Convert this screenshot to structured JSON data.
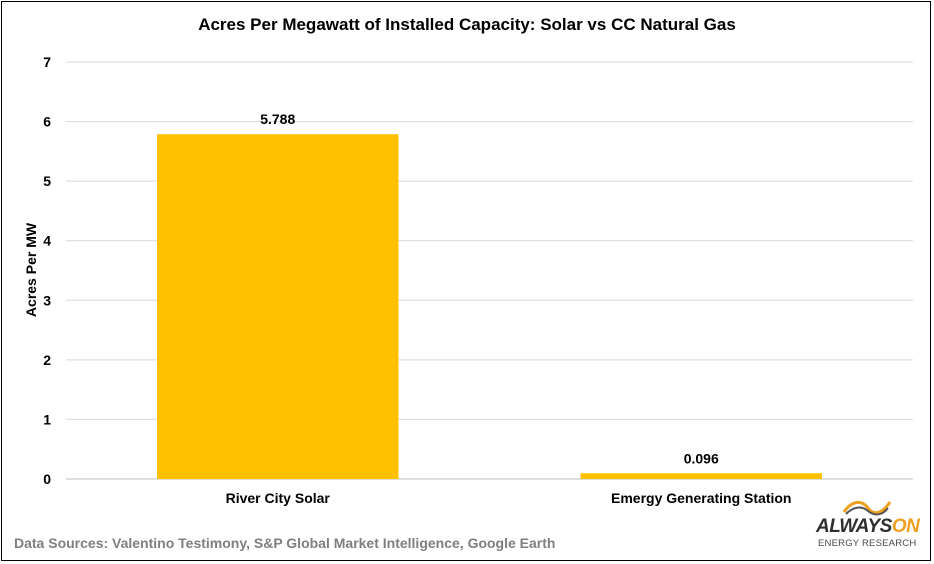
{
  "chart_data": {
    "type": "bar",
    "title": "Acres Per Megawatt of Installed Capacity: Solar vs CC Natural Gas",
    "categories": [
      "River City Solar",
      "Emergy Generating Station"
    ],
    "values": [
      5.788,
      0.096
    ],
    "data_labels": [
      "5.788",
      "0.096"
    ],
    "xlabel": "",
    "ylabel": "Acres Per MW",
    "ylim": [
      0,
      7
    ],
    "yticks": [
      0,
      1,
      2,
      3,
      4,
      5,
      6,
      7
    ],
    "grid": true,
    "bar_color": "#FFC000"
  },
  "footer": {
    "source": "Data Sources: Valentino Testimony, S&P Global Market Intelligence, Google Earth"
  },
  "logo": {
    "brand_a": "ALWAYS",
    "brand_b": "ON",
    "subtitle": "ENERGY RESEARCH",
    "brand_color": "#F0A020"
  }
}
